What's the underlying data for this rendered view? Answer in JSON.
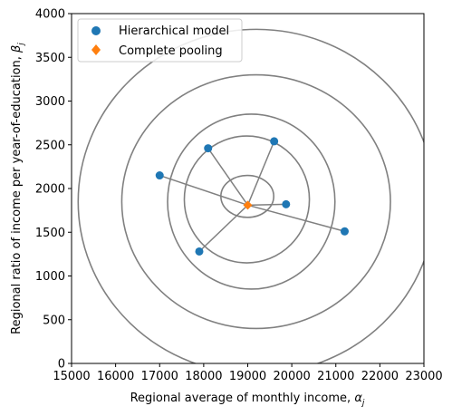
{
  "chart_data": {
    "type": "scatter",
    "xlabel": "Regional average of monthly income, α_j",
    "ylabel": "Regional ratio of income per year-of-education, β_j",
    "xlim": [
      15000,
      23000
    ],
    "ylim": [
      0,
      4000
    ],
    "xticks": [
      "15000",
      "16000",
      "17000",
      "18000",
      "19000",
      "20000",
      "21000",
      "22000",
      "23000"
    ],
    "yticks": [
      "0",
      "500",
      "1000",
      "1500",
      "2000",
      "2500",
      "3000",
      "3500",
      "4000"
    ],
    "xtick_values": [
      15000,
      16000,
      17000,
      18000,
      19000,
      20000,
      21000,
      22000,
      23000
    ],
    "ytick_values": [
      0,
      500,
      1000,
      1500,
      2000,
      2500,
      3000,
      3500,
      4000
    ],
    "grid": false,
    "legend": {
      "placement": "upper-left",
      "entries": [
        "Hierarchical model",
        "Complete pooling"
      ]
    },
    "series": [
      {
        "name": "Hierarchical model",
        "marker": "circle",
        "color": "#1f77b4",
        "points": [
          {
            "x": 17000,
            "y": 2150
          },
          {
            "x": 18100,
            "y": 2460
          },
          {
            "x": 19600,
            "y": 2540
          },
          {
            "x": 19870,
            "y": 1820
          },
          {
            "x": 21200,
            "y": 1510
          },
          {
            "x": 17900,
            "y": 1280
          }
        ]
      },
      {
        "name": "Complete pooling",
        "marker": "diamond",
        "color": "#ff7f0e",
        "points": [
          {
            "x": 19000,
            "y": 1810
          }
        ]
      }
    ],
    "contours": [
      {
        "cx": 18990,
        "cy": 1910,
        "rx": 600,
        "ry": 240
      },
      {
        "cx": 18980,
        "cy": 1875,
        "rx": 1420,
        "ry": 725
      },
      {
        "cx": 19080,
        "cy": 1850,
        "rx": 1900,
        "ry": 1000
      },
      {
        "cx": 19190,
        "cy": 1850,
        "rx": 3050,
        "ry": 1450
      },
      {
        "cx": 19200,
        "cy": 1850,
        "rx": 4050,
        "ry": 1970
      }
    ],
    "contour_color": "#808080"
  }
}
